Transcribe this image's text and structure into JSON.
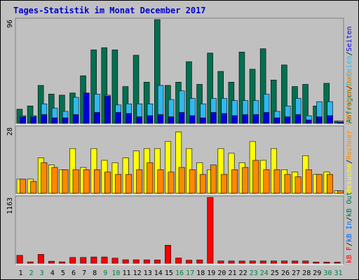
{
  "chart_data": {
    "type": "bar",
    "title": "Tages-Statistik im Monat December 2017",
    "categories": [
      "1",
      "2",
      "3",
      "4",
      "5",
      "6",
      "7",
      "8",
      "9",
      "10",
      "11",
      "12",
      "13",
      "14",
      "15",
      "16",
      "17",
      "18",
      "19",
      "20",
      "21",
      "22",
      "23",
      "24",
      "25",
      "26",
      "27",
      "28",
      "29",
      "30",
      "31"
    ],
    "weekend_days": [
      "2",
      "3",
      "9",
      "10",
      "16",
      "17",
      "23",
      "24",
      "30",
      "31"
    ],
    "colors": {
      "background": "#c0c0c0",
      "frame": "#000000",
      "title": "#0000cc",
      "hits": "#007050",
      "files": "#30b8f0",
      "pages": "#0000e0",
      "visits": "#ffff00",
      "sites": "#ff8800",
      "kb_in": "#0060ff",
      "kb_out": "#007050",
      "kbytes": "#ff0000",
      "weekday_label": "#000000",
      "weekend_label": "#008040"
    },
    "panels": [
      {
        "id": "requests",
        "ymax": 96,
        "ymax_label": "96",
        "legend": [
          {
            "text": "Anfragen",
            "color": "#007050"
          },
          {
            "text": "/",
            "color": "#000000"
          },
          {
            "text": "Dateien",
            "color": "#30b8f0"
          },
          {
            "text": "/",
            "color": "#000000"
          },
          {
            "text": "Seiten",
            "color": "#0000e0"
          }
        ],
        "series": [
          {
            "name": "Anfragen",
            "color": "#007050",
            "values": [
              13,
              16,
              35,
              27,
              26,
              28,
              44,
              68,
              70,
              68,
              34,
              63,
              38,
              96,
              35,
              38,
              57,
              36,
              65,
              48,
              38,
              66,
              50,
              69,
              40,
              54,
              34,
              36,
              16,
              37,
              2
            ]
          },
          {
            "name": "Dateien",
            "color": "#30b8f0",
            "values": [
              7,
              7,
              18,
              14,
              11,
              24,
              18,
              27,
              26,
              17,
              18,
              18,
              18,
              35,
              22,
              30,
              23,
              18,
              23,
              23,
              21,
              21,
              21,
              27,
              11,
              16,
              23,
              7,
              20,
              20,
              2
            ]
          },
          {
            "name": "Seiten",
            "color": "#0000e0",
            "values": [
              6,
              6,
              8,
              5,
              5,
              8,
              28,
              10,
              25,
              10,
              9,
              6,
              7,
              8,
              6,
              10,
              7,
              5,
              10,
              9,
              7,
              8,
              8,
              10,
              5,
              6,
              8,
              3,
              6,
              7,
              1
            ]
          }
        ]
      },
      {
        "id": "visits",
        "ymax": 28,
        "ymax_label": "28",
        "legend": [
          {
            "text": "Besuche",
            "color": "#ffff00"
          },
          {
            "text": "/",
            "color": "#000000"
          },
          {
            "text": "Rechner (IP-Adressen)",
            "color": "#ff8800"
          }
        ],
        "series": [
          {
            "name": "Besuche",
            "color": "#ffff00",
            "values": [
              6,
              6,
              15,
              12,
              10,
              19,
              11,
              19,
              14,
              13,
              15,
              18,
              19,
              19,
              22,
              26,
              19,
              13,
              10,
              19,
              17,
              13,
              22,
              14,
              19,
              10,
              9,
              16,
              8,
              9,
              1
            ]
          },
          {
            "name": "Rechner (IP-Adressen)",
            "color": "#ff8800",
            "values": [
              6,
              5,
              13,
              11,
              10,
              10,
              10,
              10,
              9,
              8,
              8,
              10,
              13,
              10,
              9,
              11,
              10,
              8,
              12,
              8,
              10,
              11,
              14,
              10,
              10,
              8,
              7,
              10,
              8,
              8,
              1
            ]
          }
        ]
      },
      {
        "id": "kbytes",
        "ymax": 1163,
        "ymax_label": "1163",
        "legend": [
          {
            "text": "kB F",
            "color": "#ff0000"
          },
          {
            "text": "/",
            "color": "#000000"
          },
          {
            "text": "kB In",
            "color": "#0060ff"
          },
          {
            "text": "/",
            "color": "#000000"
          },
          {
            "text": "kB Out",
            "color": "#007050"
          }
        ],
        "series": [
          {
            "name": "kB F",
            "color": "#ff0000",
            "values": [
              138,
              23,
              156,
              35,
              23,
              101,
              101,
              110,
              110,
              89,
              61,
              61,
              59,
              58,
              318,
              92,
              53,
              58,
              1163,
              40,
              40,
              38,
              40,
              40,
              40,
              40,
              40,
              40,
              20,
              20,
              20
            ]
          }
        ]
      }
    ]
  }
}
